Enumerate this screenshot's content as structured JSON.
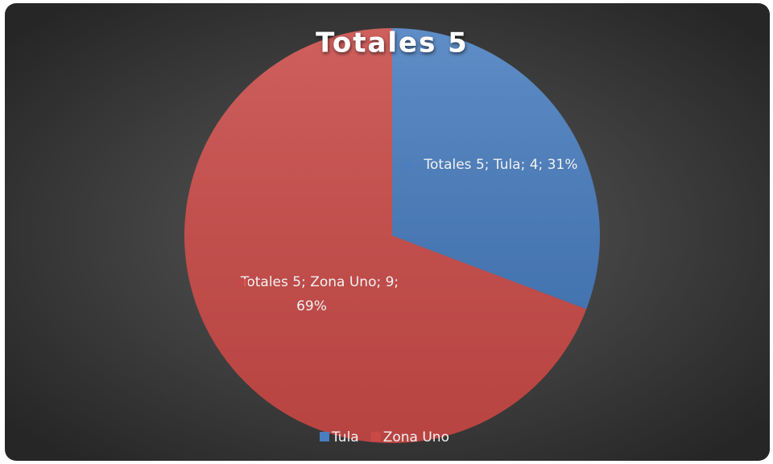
{
  "chart_data": {
    "type": "pie",
    "title": "Totales 5",
    "categories": [
      "Tula",
      "Zona Uno"
    ],
    "values": [
      4,
      9
    ],
    "value_labels": [
      "Totales 5; Tula; 4; 31%",
      "Totales 5; Zona Uno; 9; 69%"
    ],
    "colors": [
      "#4a7ebf",
      "#c84a47"
    ],
    "legend": "bottom"
  }
}
